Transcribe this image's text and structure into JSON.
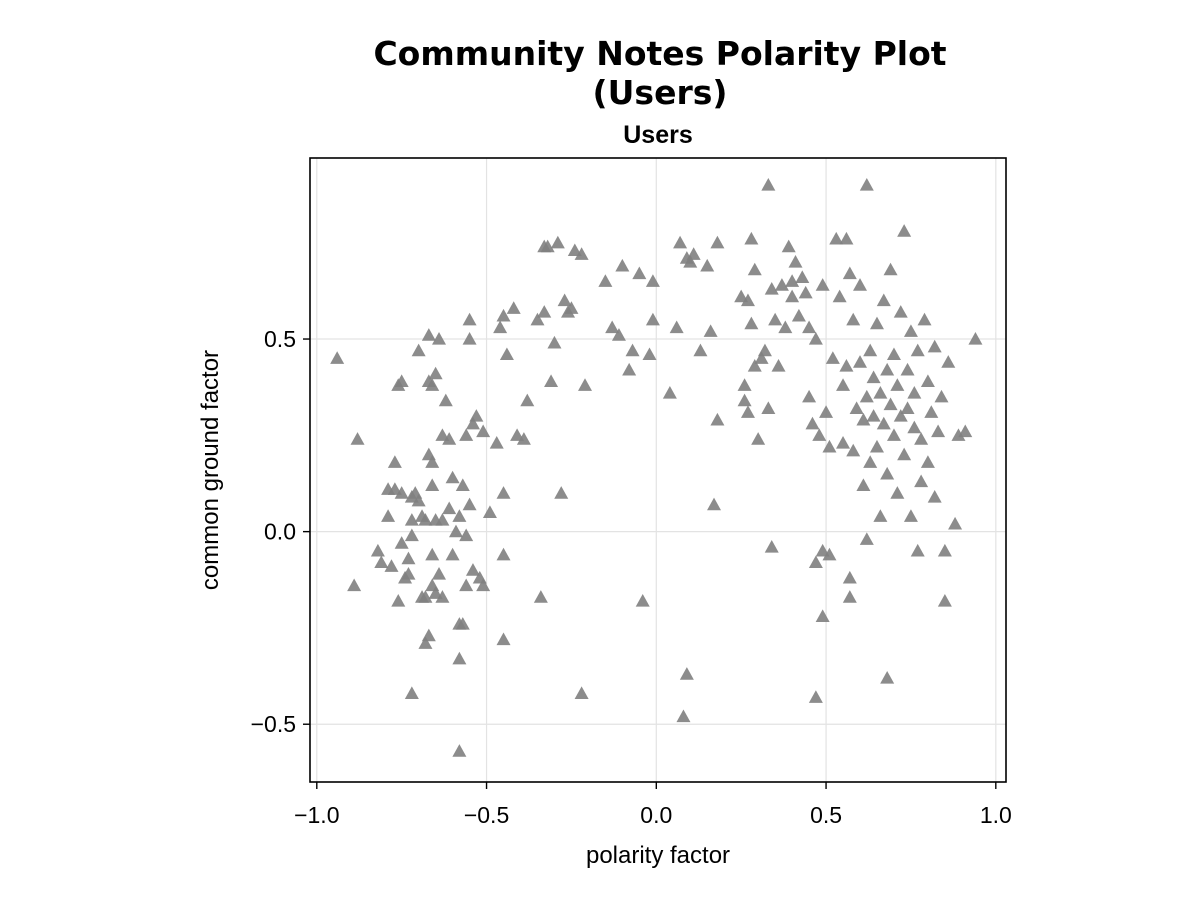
{
  "chart_data": {
    "type": "scatter",
    "title": "Community Notes Polarity Plot (Users)",
    "subtitle": "Users",
    "xlabel": "polarity factor",
    "ylabel": "common ground factor",
    "xlim": [
      -1.02,
      1.03
    ],
    "ylim": [
      -0.65,
      0.97
    ],
    "xticks": [
      -1.0,
      -0.5,
      0.0,
      0.5,
      1.0
    ],
    "xtick_labels": [
      "−1.0",
      "−0.5",
      "0.0",
      "0.5",
      "1.0"
    ],
    "yticks": [
      -0.5,
      0.0,
      0.5
    ],
    "ytick_labels": [
      "−0.5",
      "0.0",
      "0.5"
    ],
    "grid": true,
    "marker": "triangle",
    "marker_color": "#808080",
    "points": [
      [
        -0.94,
        0.45
      ],
      [
        -0.88,
        0.24
      ],
      [
        -0.89,
        -0.14
      ],
      [
        -0.82,
        -0.05
      ],
      [
        -0.81,
        -0.08
      ],
      [
        -0.79,
        0.11
      ],
      [
        -0.79,
        0.04
      ],
      [
        -0.78,
        -0.09
      ],
      [
        -0.77,
        0.18
      ],
      [
        -0.77,
        0.11
      ],
      [
        -0.76,
        0.38
      ],
      [
        -0.75,
        -0.03
      ],
      [
        -0.75,
        0.39
      ],
      [
        -0.76,
        -0.18
      ],
      [
        -0.75,
        0.1
      ],
      [
        -0.74,
        -0.12
      ],
      [
        -0.73,
        -0.11
      ],
      [
        -0.73,
        -0.07
      ],
      [
        -0.72,
        0.09
      ],
      [
        -0.72,
        0.03
      ],
      [
        -0.72,
        -0.01
      ],
      [
        -0.72,
        -0.42
      ],
      [
        -0.71,
        0.1
      ],
      [
        -0.7,
        0.08
      ],
      [
        -0.7,
        0.47
      ],
      [
        -0.69,
        0.04
      ],
      [
        -0.69,
        -0.17
      ],
      [
        -0.68,
        -0.17
      ],
      [
        -0.68,
        -0.29
      ],
      [
        -0.68,
        0.03
      ],
      [
        -0.67,
        0.2
      ],
      [
        -0.67,
        0.51
      ],
      [
        -0.67,
        0.39
      ],
      [
        -0.67,
        -0.27
      ],
      [
        -0.66,
        0.12
      ],
      [
        -0.66,
        -0.06
      ],
      [
        -0.66,
        0.18
      ],
      [
        -0.66,
        0.38
      ],
      [
        -0.66,
        -0.14
      ],
      [
        -0.65,
        0.41
      ],
      [
        -0.65,
        -0.16
      ],
      [
        -0.65,
        0.03
      ],
      [
        -0.64,
        -0.11
      ],
      [
        -0.64,
        0.5
      ],
      [
        -0.63,
        0.25
      ],
      [
        -0.63,
        0.03
      ],
      [
        -0.63,
        -0.17
      ],
      [
        -0.62,
        0.34
      ],
      [
        -0.61,
        0.06
      ],
      [
        -0.61,
        0.24
      ],
      [
        -0.6,
        0.14
      ],
      [
        -0.6,
        -0.06
      ],
      [
        -0.59,
        0.0
      ],
      [
        -0.58,
        -0.24
      ],
      [
        -0.58,
        -0.33
      ],
      [
        -0.58,
        -0.57
      ],
      [
        -0.58,
        0.04
      ],
      [
        -0.57,
        0.12
      ],
      [
        -0.57,
        -0.24
      ],
      [
        -0.56,
        -0.01
      ],
      [
        -0.56,
        0.25
      ],
      [
        -0.56,
        -0.14
      ],
      [
        -0.55,
        0.5
      ],
      [
        -0.55,
        0.07
      ],
      [
        -0.55,
        0.55
      ],
      [
        -0.54,
        0.28
      ],
      [
        -0.54,
        -0.1
      ],
      [
        -0.53,
        0.3
      ],
      [
        -0.52,
        -0.12
      ],
      [
        -0.51,
        0.26
      ],
      [
        -0.51,
        -0.14
      ],
      [
        -0.49,
        0.05
      ],
      [
        -0.47,
        0.23
      ],
      [
        -0.46,
        0.53
      ],
      [
        -0.45,
        0.1
      ],
      [
        -0.45,
        0.56
      ],
      [
        -0.45,
        -0.06
      ],
      [
        -0.45,
        -0.28
      ],
      [
        -0.44,
        0.46
      ],
      [
        -0.42,
        0.58
      ],
      [
        -0.41,
        0.25
      ],
      [
        -0.39,
        0.24
      ],
      [
        -0.38,
        0.34
      ],
      [
        -0.35,
        0.55
      ],
      [
        -0.34,
        -0.17
      ],
      [
        -0.33,
        0.74
      ],
      [
        -0.33,
        0.57
      ],
      [
        -0.32,
        0.74
      ],
      [
        -0.31,
        0.39
      ],
      [
        -0.3,
        0.49
      ],
      [
        -0.29,
        0.75
      ],
      [
        -0.28,
        0.1
      ],
      [
        -0.27,
        0.6
      ],
      [
        -0.26,
        0.57
      ],
      [
        -0.25,
        0.58
      ],
      [
        -0.24,
        0.73
      ],
      [
        -0.22,
        0.72
      ],
      [
        -0.22,
        -0.42
      ],
      [
        -0.21,
        0.38
      ],
      [
        -0.15,
        0.65
      ],
      [
        -0.13,
        0.53
      ],
      [
        -0.11,
        0.51
      ],
      [
        -0.1,
        0.69
      ],
      [
        -0.08,
        0.42
      ],
      [
        -0.07,
        0.47
      ],
      [
        -0.05,
        0.67
      ],
      [
        -0.04,
        -0.18
      ],
      [
        -0.02,
        0.46
      ],
      [
        -0.01,
        0.65
      ],
      [
        -0.01,
        0.55
      ],
      [
        0.04,
        0.36
      ],
      [
        0.06,
        0.53
      ],
      [
        0.07,
        0.75
      ],
      [
        0.08,
        -0.48
      ],
      [
        0.09,
        -0.37
      ],
      [
        0.09,
        0.71
      ],
      [
        0.11,
        0.72
      ],
      [
        0.13,
        0.47
      ],
      [
        0.15,
        0.69
      ],
      [
        0.16,
        0.52
      ],
      [
        0.17,
        0.07
      ],
      [
        0.18,
        0.29
      ],
      [
        0.18,
        0.75
      ],
      [
        0.25,
        0.61
      ],
      [
        0.26,
        0.34
      ],
      [
        0.26,
        0.38
      ],
      [
        0.27,
        0.31
      ],
      [
        0.27,
        0.6
      ],
      [
        0.28,
        0.76
      ],
      [
        0.28,
        0.54
      ],
      [
        0.29,
        0.68
      ],
      [
        0.29,
        0.43
      ],
      [
        0.3,
        0.24
      ],
      [
        0.31,
        0.45
      ],
      [
        0.32,
        0.47
      ],
      [
        0.33,
        0.9
      ],
      [
        0.33,
        0.32
      ],
      [
        0.34,
        -0.04
      ],
      [
        0.34,
        0.63
      ],
      [
        0.35,
        0.55
      ],
      [
        0.36,
        0.43
      ],
      [
        0.37,
        0.64
      ],
      [
        0.38,
        0.53
      ],
      [
        0.39,
        0.74
      ],
      [
        0.4,
        0.65
      ],
      [
        0.4,
        0.61
      ],
      [
        0.41,
        0.7
      ],
      [
        0.42,
        0.56
      ],
      [
        0.43,
        0.66
      ],
      [
        0.44,
        0.62
      ],
      [
        0.45,
        0.53
      ],
      [
        0.45,
        0.35
      ],
      [
        0.46,
        0.28
      ],
      [
        0.47,
        0.5
      ],
      [
        0.47,
        -0.08
      ],
      [
        0.48,
        0.25
      ],
      [
        0.49,
        0.64
      ],
      [
        0.49,
        -0.22
      ],
      [
        0.49,
        -0.05
      ],
      [
        0.5,
        0.31
      ],
      [
        0.51,
        -0.06
      ],
      [
        0.51,
        0.22
      ],
      [
        0.52,
        0.45
      ],
      [
        0.53,
        0.76
      ],
      [
        0.54,
        0.61
      ],
      [
        0.55,
        0.38
      ],
      [
        0.55,
        0.23
      ],
      [
        0.56,
        0.76
      ],
      [
        0.56,
        0.43
      ],
      [
        0.57,
        0.67
      ],
      [
        0.57,
        -0.12
      ],
      [
        0.57,
        -0.17
      ],
      [
        0.58,
        0.55
      ],
      [
        0.58,
        0.21
      ],
      [
        0.59,
        0.32
      ],
      [
        0.6,
        0.64
      ],
      [
        0.6,
        0.44
      ],
      [
        0.61,
        0.12
      ],
      [
        0.61,
        0.29
      ],
      [
        0.62,
        0.9
      ],
      [
        0.62,
        0.35
      ],
      [
        0.62,
        -0.02
      ],
      [
        0.63,
        0.47
      ],
      [
        0.63,
        0.18
      ],
      [
        0.64,
        0.4
      ],
      [
        0.64,
        0.3
      ],
      [
        0.65,
        0.54
      ],
      [
        0.65,
        0.22
      ],
      [
        0.66,
        0.36
      ],
      [
        0.66,
        0.04
      ],
      [
        0.67,
        0.6
      ],
      [
        0.67,
        0.28
      ],
      [
        0.68,
        0.42
      ],
      [
        0.68,
        0.15
      ],
      [
        0.68,
        -0.38
      ],
      [
        0.69,
        0.33
      ],
      [
        0.69,
        0.68
      ],
      [
        0.7,
        0.25
      ],
      [
        0.7,
        0.46
      ],
      [
        0.71,
        0.38
      ],
      [
        0.71,
        0.1
      ],
      [
        0.72,
        0.3
      ],
      [
        0.72,
        0.57
      ],
      [
        0.73,
        0.78
      ],
      [
        0.73,
        0.2
      ],
      [
        0.74,
        0.42
      ],
      [
        0.74,
        0.32
      ],
      [
        0.75,
        0.52
      ],
      [
        0.75,
        0.04
      ],
      [
        0.76,
        0.27
      ],
      [
        0.76,
        0.36
      ],
      [
        0.77,
        -0.05
      ],
      [
        0.77,
        0.47
      ],
      [
        0.78,
        0.13
      ],
      [
        0.78,
        0.24
      ],
      [
        0.79,
        0.55
      ],
      [
        0.8,
        0.39
      ],
      [
        0.8,
        0.18
      ],
      [
        0.81,
        0.31
      ],
      [
        0.82,
        0.48
      ],
      [
        0.82,
        0.09
      ],
      [
        0.83,
        0.26
      ],
      [
        0.84,
        0.35
      ],
      [
        0.85,
        -0.18
      ],
      [
        0.85,
        -0.05
      ],
      [
        0.86,
        0.44
      ],
      [
        0.88,
        0.02
      ],
      [
        0.89,
        0.25
      ],
      [
        0.91,
        0.26
      ],
      [
        0.94,
        0.5
      ],
      [
        0.47,
        -0.43
      ],
      [
        0.1,
        0.7
      ]
    ]
  }
}
